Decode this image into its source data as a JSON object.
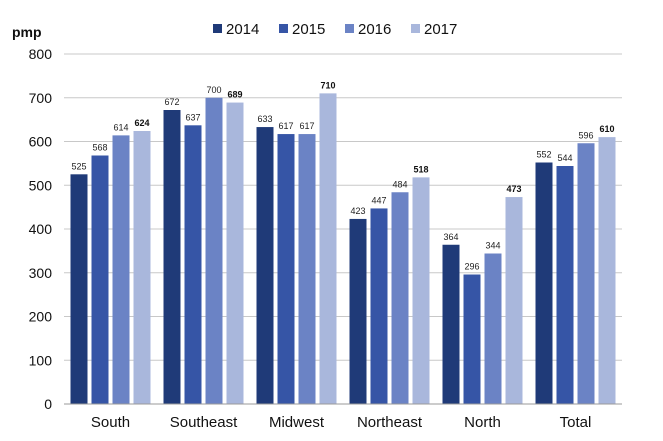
{
  "chart_data": {
    "type": "bar",
    "ylabel": "pmp",
    "ylim": [
      0,
      800
    ],
    "yticks": [
      0,
      100,
      200,
      300,
      400,
      500,
      600,
      700,
      800
    ],
    "categories": [
      "South",
      "Southeast",
      "Midwest",
      "Northeast",
      "North",
      "Total"
    ],
    "series": [
      {
        "name": "2014",
        "color": "#1f3a78",
        "values": [
          525,
          672,
          633,
          423,
          364,
          552
        ]
      },
      {
        "name": "2015",
        "color": "#3655a6",
        "values": [
          568,
          637,
          617,
          447,
          296,
          544
        ]
      },
      {
        "name": "2016",
        "color": "#6b83c5",
        "values": [
          614,
          700,
          617,
          484,
          344,
          596
        ]
      },
      {
        "name": "2017",
        "color": "#a9b7dc",
        "values": [
          624,
          689,
          710,
          518,
          473,
          610
        ]
      }
    ],
    "grid": true,
    "legend": "top-center"
  }
}
